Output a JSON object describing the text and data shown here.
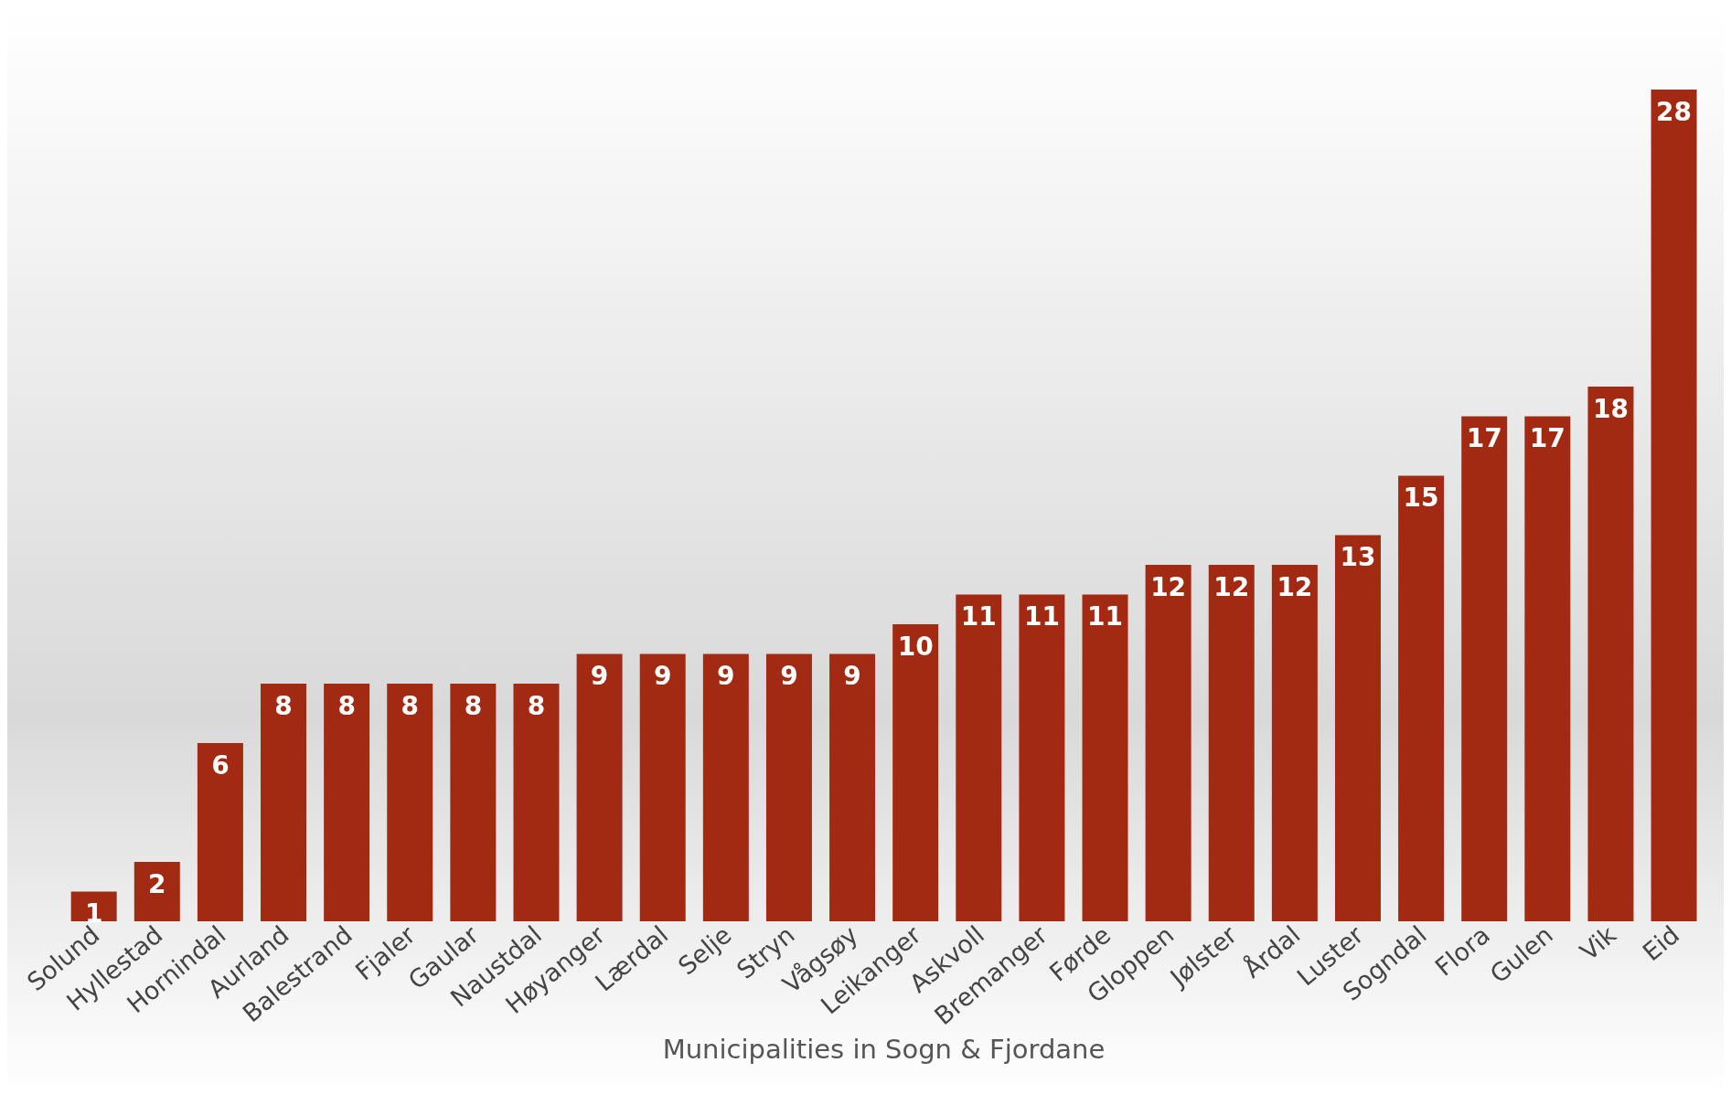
{
  "chart_data": {
    "type": "bar",
    "xlabel": "Municipalities in Sogn & Fjordane",
    "categories": [
      "Solund",
      "Hyllestad",
      "Hornindal",
      "Aurland",
      "Balestrand",
      "Fjaler",
      "Gaular",
      "Naustdal",
      "Høyanger",
      "Lærdal",
      "Selje",
      "Stryn",
      "Vågsøy",
      "Leikanger",
      "Askvoll",
      "Bremanger",
      "Førde",
      "Gloppen",
      "Jølster",
      "Årdal",
      "Luster",
      "Sogndal",
      "Flora",
      "Gulen",
      "Vik",
      "Eid"
    ],
    "values": [
      1,
      2,
      6,
      8,
      8,
      8,
      8,
      8,
      9,
      9,
      9,
      9,
      9,
      10,
      11,
      11,
      11,
      12,
      12,
      12,
      13,
      15,
      17,
      17,
      18,
      28
    ],
    "color": "#a22a12",
    "data_labels": true
  }
}
